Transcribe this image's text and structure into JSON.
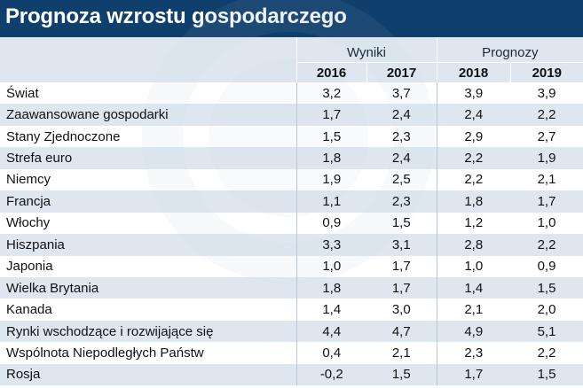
{
  "title": "Prognoza wzrostu gospodarczego",
  "colors": {
    "title_bar": "#0f3f6c",
    "header_bg": "#d7e2ec",
    "stripe_bg": "#d7e2ec"
  },
  "groups": {
    "results": "Wyniki",
    "forecasts": "Prognozy"
  },
  "years": [
    "2016",
    "2017",
    "2018",
    "2019"
  ],
  "rows": [
    {
      "name": "Świat",
      "v": [
        "3,2",
        "3,7",
        "3,9",
        "3,9"
      ]
    },
    {
      "name": "Zaawansowane gospodarki",
      "v": [
        "1,7",
        "2,4",
        "2,4",
        "2,2"
      ]
    },
    {
      "name": "Stany Zjednoczone",
      "v": [
        "1,5",
        "2,3",
        "2,9",
        "2,7"
      ]
    },
    {
      "name": "Strefa euro",
      "v": [
        "1,8",
        "2,4",
        "2,2",
        "1,9"
      ]
    },
    {
      "name": "Niemcy",
      "v": [
        "1,9",
        "2,5",
        "2,2",
        "2,1"
      ]
    },
    {
      "name": "Francja",
      "v": [
        "1,1",
        "2,3",
        "1,8",
        "1,7"
      ]
    },
    {
      "name": "Włochy",
      "v": [
        "0,9",
        "1,5",
        "1,2",
        "1,0"
      ]
    },
    {
      "name": "Hiszpania",
      "v": [
        "3,3",
        "3,1",
        "2,8",
        "2,2"
      ]
    },
    {
      "name": "Japonia",
      "v": [
        "1,0",
        "1,7",
        "1,0",
        "0,9"
      ]
    },
    {
      "name": "Wielka Brytania",
      "v": [
        "1,8",
        "1,7",
        "1,4",
        "1,5"
      ]
    },
    {
      "name": "Kanada",
      "v": [
        "1,4",
        "3,0",
        "2,1",
        "2,0"
      ]
    },
    {
      "name": "Rynki wschodzące i rozwijające się",
      "v": [
        "4,4",
        "4,7",
        "4,9",
        "5,1"
      ]
    },
    {
      "name": "Wspólnota Niepodległych Państw",
      "v": [
        "0,4",
        "2,1",
        "2,3",
        "2,2"
      ]
    },
    {
      "name": "Rosja",
      "v": [
        "-0,2",
        "1,5",
        "1,7",
        "1,5"
      ]
    }
  ]
}
